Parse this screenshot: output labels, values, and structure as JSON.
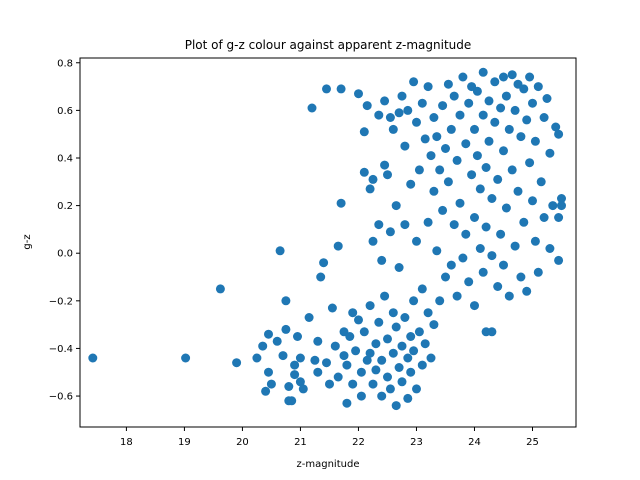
{
  "chart_data": {
    "type": "scatter",
    "title": "Plot of g-z colour against apparent z-magnitude",
    "xlabel": "z-magnitude",
    "ylabel": "g-z",
    "xlim": [
      17.2,
      25.75
    ],
    "ylim": [
      -0.73,
      0.82
    ],
    "xticks": [
      18,
      19,
      20,
      21,
      22,
      23,
      24,
      25
    ],
    "yticks": [
      -0.6,
      -0.4,
      -0.2,
      0.0,
      0.2,
      0.4,
      0.6,
      0.8
    ],
    "xtick_labels": [
      "18",
      "19",
      "20",
      "21",
      "22",
      "23",
      "24",
      "25"
    ],
    "ytick_labels": [
      "−0.6",
      "−0.4",
      "−0.2",
      "0.0",
      "0.2",
      "0.4",
      "0.6",
      "0.8"
    ],
    "grid": false,
    "marker_color": "#1f77b4",
    "series": [
      {
        "points": [
          [
            17.42,
            -0.44
          ],
          [
            19.02,
            -0.44
          ],
          [
            19.62,
            -0.15
          ],
          [
            19.9,
            -0.46
          ],
          [
            20.25,
            -0.44
          ],
          [
            20.35,
            -0.39
          ],
          [
            20.4,
            -0.58
          ],
          [
            20.45,
            -0.34
          ],
          [
            20.45,
            -0.5
          ],
          [
            20.5,
            -0.55
          ],
          [
            20.6,
            -0.37
          ],
          [
            20.65,
            0.01
          ],
          [
            20.7,
            -0.43
          ],
          [
            20.75,
            -0.2
          ],
          [
            20.75,
            -0.32
          ],
          [
            20.8,
            -0.56
          ],
          [
            20.8,
            -0.62
          ],
          [
            20.85,
            -0.62
          ],
          [
            20.9,
            -0.47
          ],
          [
            20.9,
            -0.51
          ],
          [
            20.95,
            -0.35
          ],
          [
            21.0,
            -0.54
          ],
          [
            21.0,
            -0.44
          ],
          [
            21.05,
            -0.57
          ],
          [
            21.15,
            -0.27
          ],
          [
            21.2,
            0.61
          ],
          [
            21.25,
            -0.45
          ],
          [
            21.3,
            -0.5
          ],
          [
            21.3,
            -0.37
          ],
          [
            21.35,
            -0.1
          ],
          [
            21.4,
            -0.04
          ],
          [
            21.45,
            0.69
          ],
          [
            21.45,
            -0.46
          ],
          [
            21.5,
            -0.55
          ],
          [
            21.55,
            -0.23
          ],
          [
            21.6,
            -0.39
          ],
          [
            21.65,
            -0.52
          ],
          [
            21.65,
            0.03
          ],
          [
            21.7,
            0.21
          ],
          [
            21.7,
            0.69
          ],
          [
            21.75,
            -0.33
          ],
          [
            21.75,
            -0.43
          ],
          [
            21.8,
            -0.47
          ],
          [
            21.8,
            -0.63
          ],
          [
            21.85,
            -0.35
          ],
          [
            21.9,
            -0.55
          ],
          [
            21.9,
            -0.25
          ],
          [
            21.95,
            -0.41
          ],
          [
            22.0,
            -0.28
          ],
          [
            22.0,
            0.67
          ],
          [
            22.05,
            -0.5
          ],
          [
            22.05,
            -0.6
          ],
          [
            22.1,
            0.51
          ],
          [
            22.1,
            0.34
          ],
          [
            22.1,
            -0.33
          ],
          [
            22.15,
            0.62
          ],
          [
            22.15,
            -0.45
          ],
          [
            22.2,
            0.27
          ],
          [
            22.2,
            -0.22
          ],
          [
            22.2,
            -0.42
          ],
          [
            22.25,
            -0.55
          ],
          [
            22.25,
            0.05
          ],
          [
            22.25,
            0.31
          ],
          [
            22.3,
            -0.38
          ],
          [
            22.3,
            -0.49
          ],
          [
            22.35,
            0.58
          ],
          [
            22.35,
            0.12
          ],
          [
            22.35,
            -0.29
          ],
          [
            22.4,
            -0.03
          ],
          [
            22.4,
            -0.6
          ],
          [
            22.4,
            -0.45
          ],
          [
            22.45,
            0.64
          ],
          [
            22.45,
            0.37
          ],
          [
            22.45,
            -0.18
          ],
          [
            22.5,
            -0.36
          ],
          [
            22.5,
            -0.52
          ],
          [
            22.5,
            0.33
          ],
          [
            22.55,
            0.57
          ],
          [
            22.55,
            -0.57
          ],
          [
            22.55,
            0.09
          ],
          [
            22.6,
            -0.42
          ],
          [
            22.6,
            -0.25
          ],
          [
            22.6,
            0.52
          ],
          [
            22.65,
            -0.64
          ],
          [
            22.65,
            -0.31
          ],
          [
            22.65,
            0.2
          ],
          [
            22.7,
            -0.48
          ],
          [
            22.7,
            0.59
          ],
          [
            22.7,
            -0.06
          ],
          [
            22.75,
            -0.39
          ],
          [
            22.75,
            0.66
          ],
          [
            22.75,
            -0.54
          ],
          [
            22.8,
            0.45
          ],
          [
            22.8,
            -0.27
          ],
          [
            22.8,
            0.12
          ],
          [
            22.85,
            -0.44
          ],
          [
            22.85,
            -0.61
          ],
          [
            22.85,
            0.6
          ],
          [
            22.9,
            -0.35
          ],
          [
            22.9,
            0.29
          ],
          [
            22.9,
            -0.5
          ],
          [
            22.95,
            0.72
          ],
          [
            22.95,
            -0.2
          ],
          [
            22.95,
            -0.41
          ],
          [
            23.0,
            0.55
          ],
          [
            23.0,
            -0.57
          ],
          [
            23.0,
            0.05
          ],
          [
            23.05,
            -0.33
          ],
          [
            23.05,
            0.35
          ],
          [
            23.1,
            -0.47
          ],
          [
            23.1,
            0.63
          ],
          [
            23.1,
            -0.15
          ],
          [
            23.15,
            0.48
          ],
          [
            23.15,
            -0.38
          ],
          [
            23.2,
            0.13
          ],
          [
            23.2,
            -0.25
          ],
          [
            23.2,
            0.7
          ],
          [
            23.25,
            0.41
          ],
          [
            23.25,
            -0.44
          ],
          [
            23.3,
            0.26
          ],
          [
            23.3,
            -0.3
          ],
          [
            23.3,
            0.57
          ],
          [
            23.35,
            0.01
          ],
          [
            23.35,
            0.49
          ],
          [
            23.4,
            -0.2
          ],
          [
            23.4,
            0.35
          ],
          [
            23.45,
            0.62
          ],
          [
            23.45,
            0.18
          ],
          [
            23.5,
            -0.1
          ],
          [
            23.5,
            0.44
          ],
          [
            23.55,
            0.71
          ],
          [
            23.55,
            0.3
          ],
          [
            23.6,
            -0.05
          ],
          [
            23.6,
            0.52
          ],
          [
            23.65,
            0.12
          ],
          [
            23.65,
            0.66
          ],
          [
            23.7,
            0.39
          ],
          [
            23.7,
            -0.18
          ],
          [
            23.75,
            0.58
          ],
          [
            23.75,
            0.21
          ],
          [
            23.8,
            0.74
          ],
          [
            23.8,
            -0.02
          ],
          [
            23.85,
            0.46
          ],
          [
            23.85,
            0.08
          ],
          [
            23.9,
            0.63
          ],
          [
            23.9,
            -0.12
          ],
          [
            23.95,
            0.33
          ],
          [
            23.95,
            0.7
          ],
          [
            24.0,
            0.15
          ],
          [
            24.0,
            0.52
          ],
          [
            24.0,
            -0.22
          ],
          [
            24.05,
            0.41
          ],
          [
            24.05,
            0.68
          ],
          [
            24.1,
            0.02
          ],
          [
            24.1,
            0.27
          ],
          [
            24.15,
            0.58
          ],
          [
            24.15,
            -0.08
          ],
          [
            24.15,
            0.76
          ],
          [
            24.2,
            0.36
          ],
          [
            24.2,
            0.11
          ],
          [
            24.2,
            -0.33
          ],
          [
            24.25,
            0.64
          ],
          [
            24.25,
            0.47
          ],
          [
            24.3,
            -0.01
          ],
          [
            24.3,
            0.23
          ],
          [
            24.3,
            -0.33
          ],
          [
            24.35,
            0.72
          ],
          [
            24.35,
            0.55
          ],
          [
            24.4,
            0.31
          ],
          [
            24.4,
            -0.14
          ],
          [
            24.45,
            0.61
          ],
          [
            24.45,
            0.08
          ],
          [
            24.5,
            0.74
          ],
          [
            24.5,
            0.43
          ],
          [
            24.5,
            -0.05
          ],
          [
            24.55,
            0.19
          ],
          [
            24.55,
            0.66
          ],
          [
            24.6,
            0.52
          ],
          [
            24.6,
            -0.18
          ],
          [
            24.65,
            0.75
          ],
          [
            24.65,
            0.35
          ],
          [
            24.7,
            0.03
          ],
          [
            24.7,
            0.6
          ],
          [
            24.75,
            0.71
          ],
          [
            24.75,
            0.26
          ],
          [
            24.8,
            -0.1
          ],
          [
            24.8,
            0.49
          ],
          [
            24.85,
            0.69
          ],
          [
            24.85,
            0.13
          ],
          [
            24.9,
            0.56
          ],
          [
            24.9,
            -0.16
          ],
          [
            24.95,
            0.38
          ],
          [
            24.95,
            0.74
          ],
          [
            25.0,
            0.22
          ],
          [
            25.0,
            0.63
          ],
          [
            25.05,
            0.05
          ],
          [
            25.05,
            0.47
          ],
          [
            25.1,
            0.7
          ],
          [
            25.1,
            -0.08
          ],
          [
            25.15,
            0.3
          ],
          [
            25.2,
            0.57
          ],
          [
            25.2,
            0.15
          ],
          [
            25.25,
            0.65
          ],
          [
            25.3,
            0.42
          ],
          [
            25.3,
            0.02
          ],
          [
            25.35,
            0.2
          ],
          [
            25.4,
            0.53
          ],
          [
            25.45,
            -0.03
          ],
          [
            25.45,
            0.15
          ],
          [
            25.5,
            0.23
          ],
          [
            25.5,
            0.2
          ],
          [
            25.45,
            0.5
          ]
        ]
      }
    ]
  }
}
